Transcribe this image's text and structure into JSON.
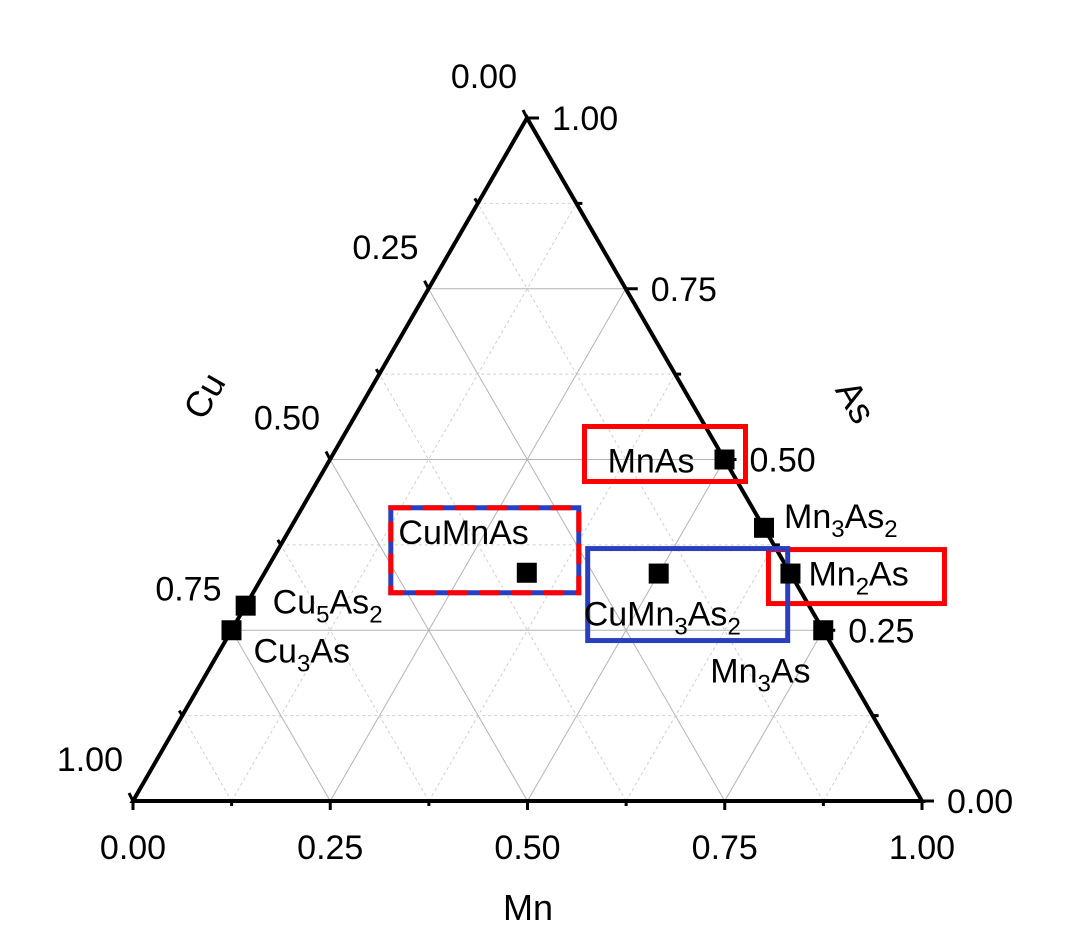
{
  "chart_data": {
    "type": "scatter",
    "subtype": "ternary",
    "title": "",
    "axes": {
      "mn": {
        "title": "Mn",
        "ticks": [
          "0.00",
          "0.25",
          "0.50",
          "0.75",
          "1.00"
        ]
      },
      "as": {
        "title": "As",
        "ticks": [
          "0.00",
          "0.25",
          "0.50",
          "0.75",
          "1.00"
        ]
      },
      "cu": {
        "title": "Cu",
        "ticks": [
          "0.00",
          "0.25",
          "0.50",
          "0.75",
          "1.00"
        ]
      }
    },
    "grid": true,
    "grid_step": 0.125,
    "marker": "square",
    "marker_color": "#000000",
    "points": [
      {
        "name": "MnAs",
        "base": "MnAs",
        "subs": [],
        "cu": 0.0,
        "mn": 0.5,
        "as": 0.5
      },
      {
        "name": "Mn3As2",
        "base": "Mn",
        "subs": [
          {
            "t": "3",
            "sub": true
          },
          {
            "t": "As",
            "sub": false
          },
          {
            "t": "2",
            "sub": true
          }
        ],
        "cu": 0.0,
        "mn": 0.6,
        "as": 0.4
      },
      {
        "name": "Mn2As",
        "base": "Mn",
        "subs": [
          {
            "t": "2",
            "sub": true
          },
          {
            "t": "As",
            "sub": false
          }
        ],
        "cu": 0.0,
        "mn": 0.667,
        "as": 0.333
      },
      {
        "name": "Mn3As",
        "base": "Mn",
        "subs": [
          {
            "t": "3",
            "sub": true
          },
          {
            "t": "As",
            "sub": false
          }
        ],
        "cu": 0.0,
        "mn": 0.75,
        "as": 0.25
      },
      {
        "name": "CuMnAs",
        "base": "CuMnAs",
        "subs": [],
        "cu": 0.333,
        "mn": 0.333,
        "as": 0.333
      },
      {
        "name": "CuMn3As2",
        "base": "CuMn",
        "subs": [
          {
            "t": "3",
            "sub": true
          },
          {
            "t": "As",
            "sub": false
          },
          {
            "t": "2",
            "sub": true
          }
        ],
        "cu": 0.167,
        "mn": 0.5,
        "as": 0.333
      },
      {
        "name": "Cu5As2",
        "base": "Cu",
        "subs": [
          {
            "t": "5",
            "sub": true
          },
          {
            "t": "As",
            "sub": false
          },
          {
            "t": "2",
            "sub": true
          }
        ],
        "cu": 0.714,
        "mn": 0.0,
        "as": 0.286
      },
      {
        "name": "Cu3As",
        "base": "Cu",
        "subs": [
          {
            "t": "3",
            "sub": true
          },
          {
            "t": "As",
            "sub": false
          }
        ],
        "cu": 0.75,
        "mn": 0.0,
        "as": 0.25
      }
    ],
    "highlights": [
      {
        "target": "MnAs",
        "style": "solid",
        "colors": [
          "#ff0000"
        ]
      },
      {
        "target": "Mn2As",
        "style": "solid",
        "colors": [
          "#ff0000"
        ]
      },
      {
        "target": "CuMn3As2",
        "style": "solid",
        "colors": [
          "#2a3fbf"
        ]
      },
      {
        "target": "CuMnAs",
        "style": "dashed",
        "colors": [
          "#2a3fbf",
          "#ff0000"
        ]
      }
    ]
  }
}
